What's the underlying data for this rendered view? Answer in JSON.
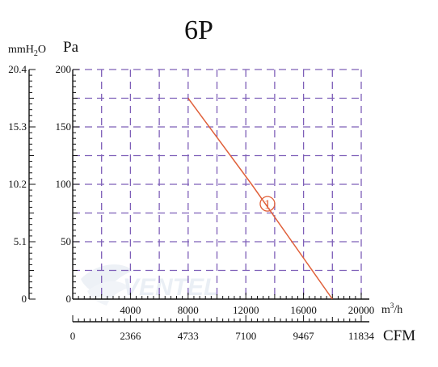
{
  "chart_data": {
    "type": "line",
    "title": "6P",
    "x_axis_primary": {
      "unit": "m³/h",
      "unit_base": "m",
      "unit_sup": "3",
      "unit_tail": "/h",
      "range": [
        0,
        20000
      ],
      "tick_labels": [
        "4000",
        "8000",
        "12000",
        "16000",
        "20000"
      ]
    },
    "x_axis_secondary": {
      "unit": "CFM",
      "range": [
        0,
        11834
      ],
      "tick_labels": [
        "0",
        "2366",
        "4733",
        "7100",
        "9467",
        "11834"
      ]
    },
    "y_axis_primary": {
      "unit": "Pa",
      "range": [
        0,
        200
      ],
      "tick_labels": [
        "0",
        "50",
        "100",
        "150",
        "200"
      ]
    },
    "y_axis_secondary": {
      "unit": "mmH₂O",
      "unit_base": "mmH",
      "unit_sub": "2",
      "unit_tail": "O",
      "range": [
        0,
        20.4
      ],
      "tick_labels": [
        "0",
        "5.1",
        "10.2",
        "15.3",
        "20.4"
      ]
    },
    "grid": true,
    "series": [
      {
        "label": "1",
        "color": "#e0603a",
        "x": [
          8000,
          12400,
          18000
        ],
        "y": [
          175,
          100,
          0
        ]
      }
    ],
    "annotation": {
      "label": "1",
      "x": 13500,
      "y": 83
    }
  }
}
